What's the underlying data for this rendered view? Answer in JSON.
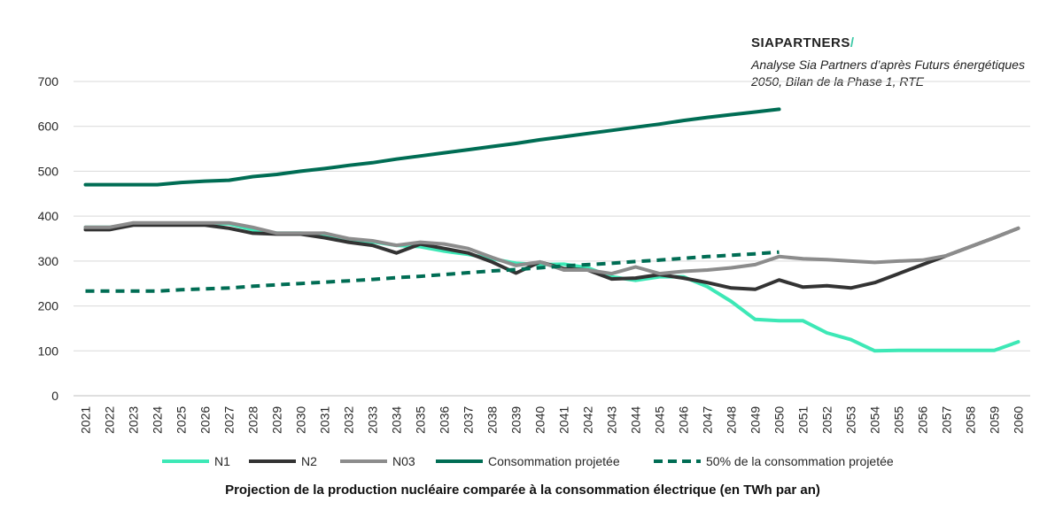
{
  "brand": {
    "name": "SIAPARTNERS",
    "accent": "/"
  },
  "source_note": "Analyse Sia Partners d’après Futurs énergétiques 2050, Bilan de la Phase 1, RTE",
  "caption": "Projection de la production nucléaire comparée à la consommation électrique (en TWh par an)",
  "chart_data": {
    "type": "line",
    "title": "Projection de la production nucléaire comparée à la consommation électrique (en TWh par an)",
    "xlabel": "",
    "ylabel": "",
    "ylim": [
      0,
      700
    ],
    "yticks": [
      0,
      100,
      200,
      300,
      400,
      500,
      600,
      700
    ],
    "grid": true,
    "legend_position": "bottom",
    "categories": [
      "2021",
      "2022",
      "2023",
      "2024",
      "2025",
      "2026",
      "2027",
      "2028",
      "2029",
      "2030",
      "2031",
      "2032",
      "2033",
      "2034",
      "2035",
      "2036",
      "2037",
      "2038",
      "2039",
      "2040",
      "2041",
      "2042",
      "2043",
      "2044",
      "2045",
      "2046",
      "2047",
      "2048",
      "2049",
      "2050",
      "2051",
      "2052",
      "2053",
      "2054",
      "2055",
      "2056",
      "2057",
      "2058",
      "2059",
      "2060"
    ],
    "series": [
      {
        "name": "N1",
        "color": "#3de8b6",
        "dashed": false,
        "values": [
          375,
          375,
          383,
          383,
          383,
          383,
          383,
          370,
          362,
          362,
          360,
          348,
          343,
          335,
          332,
          322,
          315,
          305,
          295,
          292,
          293,
          285,
          265,
          257,
          265,
          265,
          243,
          210,
          170,
          167,
          167,
          140,
          125,
          100,
          101,
          101,
          101,
          101,
          101,
          120
        ]
      },
      {
        "name": "N2",
        "color": "#333333",
        "dashed": false,
        "values": [
          370,
          370,
          380,
          380,
          380,
          380,
          373,
          362,
          360,
          360,
          352,
          342,
          335,
          318,
          338,
          328,
          318,
          298,
          273,
          298,
          283,
          280,
          260,
          262,
          270,
          262,
          252,
          240,
          237,
          258,
          242,
          245,
          240,
          252,
          272,
          292,
          312,
          332,
          352,
          373
        ]
      },
      {
        "name": "N03",
        "color": "#8c8c8c",
        "dashed": false,
        "values": [
          375,
          375,
          385,
          385,
          385,
          385,
          385,
          375,
          362,
          362,
          362,
          350,
          345,
          335,
          342,
          338,
          328,
          308,
          290,
          298,
          280,
          280,
          272,
          287,
          272,
          277,
          280,
          285,
          292,
          310,
          305,
          303,
          300,
          297,
          300,
          302,
          312,
          332,
          352,
          373
        ]
      },
      {
        "name": "Consommation projetée",
        "color": "#006d54",
        "dashed": false,
        "values": [
          470,
          470,
          470,
          470,
          475,
          478,
          480,
          488,
          493,
          500,
          506,
          513,
          519,
          527,
          534,
          541,
          548,
          555,
          562,
          570,
          577,
          584,
          591,
          598,
          605,
          613,
          620,
          626,
          632,
          638,
          null,
          null,
          null,
          null,
          null,
          null,
          null,
          null,
          null,
          null
        ]
      },
      {
        "name": "50% de la consommation projetée",
        "color": "#006d54",
        "dashed": true,
        "values": [
          233,
          233,
          233,
          233,
          236,
          238,
          240,
          244,
          247,
          250,
          253,
          256,
          259,
          263,
          266,
          270,
          274,
          278,
          281,
          285,
          289,
          292,
          295,
          299,
          302,
          306,
          310,
          313,
          316,
          320,
          null,
          null,
          null,
          null,
          null,
          null,
          null,
          null,
          null,
          null
        ]
      }
    ]
  }
}
